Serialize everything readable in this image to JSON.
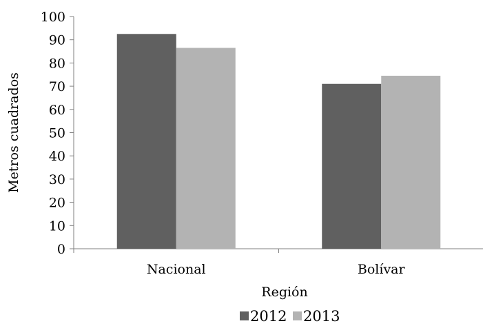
{
  "chart_data": {
    "type": "bar",
    "xlabel": "Región",
    "ylabel": "Metros cuadrados",
    "categories": [
      "Nacional",
      "Bolívar"
    ],
    "series": [
      {
        "name": "2012",
        "values": [
          92.5,
          71
        ],
        "color": "#606060"
      },
      {
        "name": "2013",
        "values": [
          86.5,
          74.5
        ],
        "color": "#b3b3b3"
      }
    ],
    "ylim": [
      0,
      100
    ],
    "yticks": [
      0,
      10,
      20,
      30,
      40,
      50,
      60,
      70,
      80,
      90,
      100
    ],
    "grid": false,
    "legend_position": "bottom"
  }
}
